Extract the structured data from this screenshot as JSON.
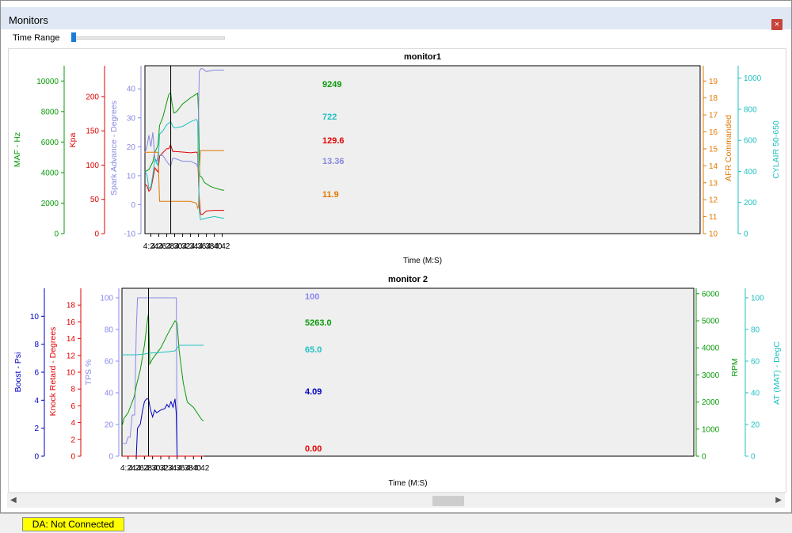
{
  "window": {
    "title": "Monitors",
    "close_label": "×"
  },
  "time_range": {
    "label": "Time Range",
    "value": 0.0
  },
  "status": {
    "text": "DA: Not Connected"
  },
  "chart_data": [
    {
      "type": "line",
      "title": "monitor1",
      "xlabel": "Time (M:S)",
      "xlim": [
        262.5,
        402.5
      ],
      "xticks": [
        264,
        266,
        268,
        270,
        272,
        274,
        276,
        278,
        280,
        282
      ],
      "xtick_labels": [
        "4:24",
        "4:26",
        "4:28",
        "4:30",
        "4:32",
        "4:34",
        "4:36",
        "4:38",
        "4:40",
        "4:42"
      ],
      "cursor": {
        "x": 269,
        "color": "#000000"
      },
      "axes": [
        {
          "id": "maf",
          "label": "MAF - Hz",
          "color": "#0a9a0a",
          "side": "left",
          "ylim": [
            0,
            11000
          ],
          "ticks": [
            0,
            2000,
            4000,
            6000,
            8000,
            10000
          ]
        },
        {
          "id": "kpa",
          "label": "Kpa",
          "color": "#e00000",
          "side": "left",
          "ylim": [
            0,
            245
          ],
          "ticks": [
            0,
            50,
            100,
            150,
            200
          ]
        },
        {
          "id": "spark",
          "label": "Spark Advance - Degrees",
          "color": "#8888dd",
          "side": "left",
          "ylim": [
            -10,
            48
          ],
          "ticks": [
            -10,
            0,
            10,
            20,
            30,
            40
          ]
        },
        {
          "id": "afr",
          "label": "AFR Commanded",
          "color": "#e07800",
          "side": "right",
          "ylim": [
            10,
            19.9
          ],
          "ticks": [
            10,
            11,
            12,
            13,
            14,
            15,
            16,
            17,
            18,
            19
          ]
        },
        {
          "id": "cyl",
          "label": "CYLAIR 50-650",
          "color": "#20c0c0",
          "side": "right",
          "ylim": [
            0,
            1080
          ],
          "ticks": [
            0,
            200,
            400,
            600,
            800,
            1000
          ]
        }
      ],
      "series": [
        {
          "axis": "maf",
          "color": "#0a9a0a",
          "cursor_value": "9249",
          "x": [
            262.5,
            263.5,
            264.5,
            265,
            265.5,
            265.8,
            266.2,
            267,
            268,
            268.5,
            269,
            269.3,
            269.8,
            270.5,
            272,
            274,
            275.8,
            276.0,
            276.3,
            276.8,
            277.5,
            279,
            280,
            282,
            282.5
          ],
          "y": [
            4050,
            4200,
            4700,
            5350,
            5600,
            5800,
            7100,
            7600,
            8600,
            9100,
            9249,
            8600,
            7900,
            8000,
            8500,
            8900,
            9200,
            8000,
            3800,
            3700,
            3350,
            3100,
            3000,
            2850,
            2850
          ]
        },
        {
          "axis": "kpa",
          "color": "#e00000",
          "cursor_value": "129.6",
          "x": [
            262.5,
            263,
            263.5,
            264,
            264.5,
            265,
            265.5,
            265.8,
            266.2,
            267,
            268,
            268.5,
            269,
            269.5,
            270,
            272,
            274,
            275.5,
            275.8,
            276.1,
            276.5,
            277,
            278,
            280,
            282,
            282.5
          ],
          "y": [
            72,
            70,
            62,
            65,
            80,
            96,
            92,
            90,
            113,
            118,
            124,
            124,
            129.6,
            120,
            120,
            119,
            118,
            119,
            117,
            60,
            28,
            28,
            33,
            34,
            34,
            34
          ]
        },
        {
          "axis": "spark",
          "color": "#8888dd",
          "cursor_value": "13.36",
          "x": [
            262.5,
            263,
            263.5,
            264,
            264.5,
            265,
            265.5,
            265.8,
            266.2,
            267,
            268,
            268.5,
            269,
            269.5,
            270,
            272,
            274,
            275.5,
            275.8,
            276.0,
            276.2,
            276.6,
            277,
            278,
            280,
            282,
            282.5
          ],
          "y": [
            18,
            20,
            24,
            20,
            25,
            16,
            15,
            17,
            17,
            17,
            15,
            14,
            13.36,
            16,
            16,
            15,
            15,
            14,
            13,
            30,
            46,
            47,
            47,
            46,
            46.5,
            46.5,
            46.5
          ]
        },
        {
          "axis": "afr",
          "color": "#e07800",
          "cursor_value": "11.9",
          "x": [
            262.5,
            265.5,
            265.8,
            266.2,
            268,
            269,
            270,
            272,
            274,
            275.5,
            275.8,
            276.0,
            276.2,
            276.5,
            282.5
          ],
          "y": [
            14.8,
            14.8,
            14.8,
            11.9,
            11.9,
            11.9,
            11.9,
            11.9,
            11.9,
            11.8,
            11.5,
            11.6,
            13.5,
            14.9,
            14.9
          ]
        },
        {
          "axis": "cyl",
          "color": "#20c0c0",
          "cursor_value": "722",
          "x": [
            262.5,
            263,
            263.5,
            264,
            264.5,
            265,
            265.5,
            265.8,
            266.2,
            267,
            268,
            268.5,
            269,
            269.5,
            270,
            272,
            274,
            275.5,
            275.8,
            276.0,
            276.2,
            276.5,
            278,
            280,
            282,
            282.5
          ],
          "y": [
            400,
            380,
            290,
            300,
            380,
            480,
            450,
            440,
            640,
            660,
            700,
            710,
            722,
            690,
            680,
            690,
            720,
            735,
            720,
            400,
            150,
            90,
            100,
            110,
            100,
            100
          ]
        }
      ]
    },
    {
      "type": "line",
      "title": "monitor 2",
      "xlabel": "Time (M:S)",
      "xlim": [
        262.5,
        402.5
      ],
      "xticks": [
        264,
        266,
        268,
        270,
        272,
        274,
        276,
        278,
        280,
        282
      ],
      "xtick_labels": [
        "4:24",
        "4:26",
        "4:28",
        "4:30",
        "4:32",
        "4:34",
        "4:36",
        "4:38",
        "4:40",
        "4:42"
      ],
      "cursor": {
        "x": 269,
        "color": "#000000"
      },
      "axes": [
        {
          "id": "boost",
          "label": "Boost - Psi",
          "color": "#0000c0",
          "side": "left",
          "ylim": [
            0,
            12
          ],
          "ticks": [
            0,
            2,
            4,
            6,
            8,
            10
          ]
        },
        {
          "id": "knock",
          "label": "Knock Retard - Degrees",
          "color": "#e00000",
          "side": "left",
          "ylim": [
            0,
            20
          ],
          "ticks": [
            0,
            2,
            4,
            6,
            8,
            10,
            12,
            14,
            16,
            18
          ]
        },
        {
          "id": "tps",
          "label": "TPS %",
          "color": "#8888ee",
          "side": "left",
          "ylim": [
            0,
            106
          ],
          "ticks": [
            0,
            20,
            40,
            60,
            80,
            100
          ]
        },
        {
          "id": "rpm",
          "label": "RPM",
          "color": "#0a9a0a",
          "side": "right",
          "ylim": [
            0,
            6200
          ],
          "ticks": [
            0,
            1000,
            2000,
            3000,
            4000,
            5000,
            6000
          ]
        },
        {
          "id": "at",
          "label": "AT (MAT) - DegC",
          "color": "#20c0c0",
          "side": "right",
          "ylim": [
            0,
            106
          ],
          "ticks": [
            0,
            20,
            40,
            60,
            80,
            100
          ]
        }
      ],
      "series": [
        {
          "axis": "tps",
          "color": "#8888ee",
          "cursor_value": "100",
          "x": [
            262.5,
            263.5,
            264,
            264.5,
            265,
            265.2,
            265.6,
            266,
            266.3,
            266.6,
            268,
            270,
            272,
            274,
            275.5,
            275.8,
            276.0,
            282.5
          ],
          "y": [
            8,
            8,
            12,
            12,
            26,
            26,
            26,
            80,
            100,
            100,
            100,
            100,
            100,
            100,
            100,
            100,
            0,
            0
          ]
        },
        {
          "axis": "boost",
          "color": "#0000c0",
          "cursor_value": "4.09",
          "x": [
            266.0,
            266.3,
            267,
            267.5,
            268,
            268.5,
            269,
            269.5,
            270,
            270.5,
            271,
            272,
            273,
            273.5,
            274,
            274.5,
            275,
            275.5,
            275.8,
            276.0
          ],
          "y": [
            0,
            2.0,
            2.3,
            3.2,
            3.9,
            4.1,
            4.09,
            3.3,
            2.8,
            3.3,
            3.1,
            3.3,
            3.4,
            3.7,
            3.5,
            3.9,
            3.5,
            4.1,
            3.0,
            0
          ]
        },
        {
          "axis": "knock",
          "color": "#e00000",
          "cursor_value": "0.00",
          "x": [
            262.5,
            282.5
          ],
          "y": [
            0,
            0
          ]
        },
        {
          "axis": "rpm",
          "color": "#0a9a0a",
          "cursor_value": "5263.0",
          "x": [
            262.5,
            263,
            263.5,
            264,
            264.5,
            265,
            265.5,
            266,
            267,
            268,
            268.8,
            269,
            269.3,
            270,
            272,
            274,
            275.5,
            276.0,
            276.5,
            277.5,
            278.5,
            280,
            282,
            282.5
          ],
          "y": [
            1100,
            1400,
            1500,
            1600,
            1800,
            2000,
            2200,
            2600,
            3200,
            4100,
            5100,
            5263,
            3400,
            3600,
            4000,
            4600,
            5000,
            4900,
            3900,
            2700,
            2000,
            1800,
            1350,
            1300
          ]
        },
        {
          "axis": "at",
          "color": "#20c0c0",
          "cursor_value": "65.0",
          "x": [
            262.5,
            266,
            268,
            269,
            270,
            272,
            274,
            275.5,
            276.5,
            278,
            280,
            282.5
          ],
          "y": [
            64,
            64,
            64.5,
            65,
            65.2,
            65.5,
            66,
            66.5,
            70,
            70,
            70,
            70
          ]
        }
      ]
    }
  ]
}
